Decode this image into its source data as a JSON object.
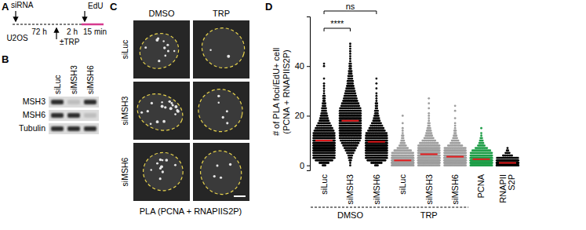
{
  "panel_labels": [
    "A",
    "B",
    "C",
    "D"
  ],
  "panel_a": {
    "transfection": "siRNA",
    "cells": "U2OS",
    "interval_1": "72 h",
    "treatment": "±TRP",
    "interval_2": "2 h",
    "pulse": "EdU",
    "interval_3": "15 min"
  },
  "panel_b": {
    "lanes": [
      "siLuc",
      "siMSH3",
      "siMSH6"
    ],
    "rows": [
      "MSH3",
      "MSH6",
      "Tubulin"
    ]
  },
  "panel_c": {
    "columns": [
      "DMSO",
      "TRP"
    ],
    "rows": [
      "siLuc",
      "siMSH3",
      "siMSH6"
    ],
    "caption": "PLA (PCNA + RNAPIIS2P)"
  },
  "chart_data": {
    "type": "dot",
    "y_label": [
      "# of PLA foci/EdU+ cell",
      "(PCNA + RNAPIIS2P)"
    ],
    "categories": [
      "siLuc",
      "siMSH3",
      "siMSH6",
      "siLuc",
      "siMSH3",
      "siMSH6",
      "PCNA",
      "RNAPII S2P"
    ],
    "groups": [
      {
        "label": "DMSO",
        "start": 0,
        "end": 2
      },
      {
        "label": "TRP",
        "start": 3,
        "end": 5
      }
    ],
    "comparisons": [
      {
        "from": 0,
        "to": 1,
        "label": "****"
      },
      {
        "from": 0,
        "to": 2,
        "label": "ns"
      }
    ],
    "ylim": [
      -2,
      60
    ],
    "yticks": [
      0,
      20,
      40
    ],
    "series": [
      {
        "color": "#000000",
        "mean": 10,
        "foci": [
          0,
          1,
          2,
          3,
          4,
          5,
          6,
          7,
          8,
          9,
          10,
          11,
          12,
          13,
          14,
          15,
          16,
          17,
          18,
          19,
          20,
          21,
          22,
          23,
          24,
          25,
          26,
          27,
          28,
          29,
          30,
          31,
          32,
          33,
          35,
          40,
          41
        ],
        "counts": [
          3,
          8,
          14,
          20,
          26,
          30,
          33,
          34,
          33,
          31,
          28,
          25,
          22,
          19,
          16,
          14,
          12,
          10,
          8,
          7,
          6,
          5,
          4,
          4,
          3,
          3,
          2,
          2,
          2,
          1,
          1,
          1,
          1,
          1,
          1,
          1,
          1
        ]
      },
      {
        "color": "#000000",
        "mean": 18,
        "foci": [
          0,
          1,
          2,
          3,
          4,
          5,
          6,
          7,
          8,
          9,
          10,
          11,
          12,
          13,
          14,
          15,
          16,
          17,
          18,
          19,
          20,
          21,
          22,
          23,
          24,
          25,
          26,
          27,
          28,
          29,
          30,
          31,
          32,
          33,
          34,
          35,
          36,
          37,
          38,
          39,
          40,
          41,
          42,
          43,
          44,
          45,
          46,
          47,
          48,
          49
        ],
        "counts": [
          1,
          1,
          2,
          3,
          4,
          6,
          8,
          10,
          12,
          14,
          16,
          18,
          20,
          22,
          23,
          24,
          25,
          25,
          24,
          23,
          22,
          20,
          19,
          17,
          15,
          14,
          12,
          11,
          10,
          9,
          8,
          7,
          6,
          5,
          5,
          4,
          4,
          3,
          3,
          2,
          2,
          2,
          1,
          1,
          1,
          1,
          1,
          1,
          1,
          1
        ]
      },
      {
        "color": "#000000",
        "mean": 9.5,
        "foci": [
          0,
          1,
          2,
          3,
          4,
          5,
          6,
          7,
          8,
          9,
          10,
          11,
          12,
          13,
          14,
          15,
          16,
          17,
          18,
          19,
          20,
          21,
          22,
          23,
          24,
          25,
          26,
          27,
          28,
          29,
          31,
          33,
          35
        ],
        "counts": [
          3,
          9,
          15,
          21,
          26,
          30,
          32,
          32,
          31,
          29,
          26,
          23,
          20,
          17,
          14,
          12,
          10,
          8,
          6,
          5,
          4,
          3,
          3,
          2,
          2,
          2,
          1,
          1,
          1,
          1,
          1,
          1,
          1
        ]
      },
      {
        "color": "#9e9e9e",
        "mean": 2,
        "foci": [
          0,
          1,
          2,
          3,
          4,
          5,
          6,
          7,
          8,
          9,
          10,
          11,
          12,
          13,
          14,
          15,
          17,
          20
        ],
        "counts": [
          60,
          80,
          70,
          50,
          35,
          22,
          14,
          9,
          6,
          4,
          3,
          2,
          2,
          1,
          1,
          1,
          1,
          1
        ]
      },
      {
        "color": "#9e9e9e",
        "mean": 4.5,
        "foci": [
          0,
          1,
          2,
          3,
          4,
          5,
          6,
          7,
          8,
          9,
          10,
          11,
          12,
          13,
          14,
          15,
          16,
          17,
          18,
          19,
          20,
          21,
          23,
          25,
          27
        ],
        "counts": [
          25,
          45,
          55,
          55,
          50,
          42,
          34,
          26,
          20,
          15,
          11,
          8,
          6,
          5,
          4,
          3,
          2,
          2,
          1,
          1,
          1,
          1,
          1,
          1,
          1
        ]
      },
      {
        "color": "#9e9e9e",
        "mean": 3.5,
        "foci": [
          0,
          1,
          2,
          3,
          4,
          5,
          6,
          7,
          8,
          9,
          10,
          11,
          12,
          13,
          14,
          15,
          16,
          17,
          19,
          22,
          24
        ],
        "counts": [
          30,
          50,
          58,
          55,
          45,
          35,
          25,
          18,
          12,
          8,
          6,
          4,
          3,
          2,
          2,
          1,
          1,
          1,
          1,
          1,
          1
        ]
      },
      {
        "color": "#1f9e48",
        "mean": 2.5,
        "foci": [
          0,
          1,
          2,
          3,
          4,
          5,
          6,
          7,
          8,
          9,
          10,
          11,
          12,
          13,
          15
        ],
        "counts": [
          40,
          60,
          60,
          48,
          35,
          24,
          15,
          10,
          6,
          4,
          3,
          2,
          1,
          1,
          1
        ]
      },
      {
        "color": "#000000",
        "mean": 1,
        "foci": [
          0,
          1,
          2,
          3,
          4,
          5,
          6,
          7
        ],
        "counts": [
          90,
          80,
          40,
          18,
          8,
          4,
          2,
          1
        ]
      }
    ]
  }
}
